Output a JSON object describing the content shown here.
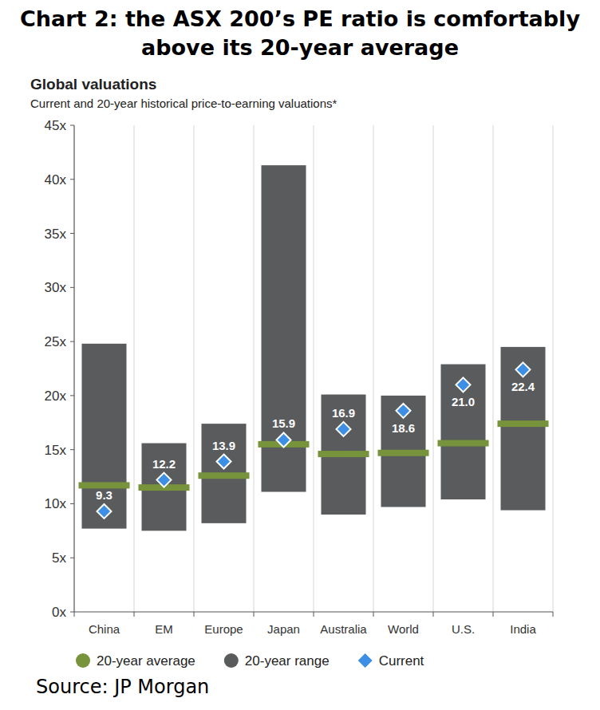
{
  "chart_data": {
    "type": "bar",
    "title": "Chart 2: the ASX 200’s PE ratio is comfortably above its 20-year average",
    "subtitle": "Global valuations",
    "caption": "Current and 20-year historical price-to-earning valuations*",
    "source": "Source: JP Morgan",
    "categories": [
      "China",
      "EM",
      "Europe",
      "Japan",
      "Australia",
      "World",
      "U.S.",
      "India"
    ],
    "ylim": [
      0,
      45
    ],
    "yticks": [
      {
        "value": 0,
        "label": "0x"
      },
      {
        "value": 5,
        "label": "5x"
      },
      {
        "value": 10,
        "label": "10x"
      },
      {
        "value": 15,
        "label": "15x"
      },
      {
        "value": 20,
        "label": "20x"
      },
      {
        "value": 25,
        "label": "25x"
      },
      {
        "value": 30,
        "label": "30x"
      },
      {
        "value": 35,
        "label": "35x"
      },
      {
        "value": 40,
        "label": "40x"
      },
      {
        "value": 45,
        "label": "45x"
      }
    ],
    "grid": true,
    "legend": "bottom",
    "series": [
      {
        "name": "20-year average",
        "type": "line",
        "marker": "dash",
        "color": "#77933c",
        "values": [
          11.7,
          11.5,
          12.6,
          15.5,
          14.6,
          14.7,
          15.6,
          17.4
        ]
      },
      {
        "name": "20-year range",
        "type": "range",
        "color": "#595b5d",
        "low": [
          7.7,
          7.5,
          8.2,
          11.1,
          9.0,
          9.7,
          10.4,
          9.4
        ],
        "high": [
          24.8,
          15.6,
          17.4,
          41.3,
          20.1,
          20.0,
          22.9,
          24.5
        ]
      },
      {
        "name": "Current",
        "type": "scatter",
        "marker": "diamond",
        "color": "#3d8fe6",
        "data_labels": true,
        "values": [
          9.3,
          12.2,
          13.9,
          15.9,
          16.9,
          18.6,
          21.0,
          22.4
        ]
      }
    ]
  }
}
